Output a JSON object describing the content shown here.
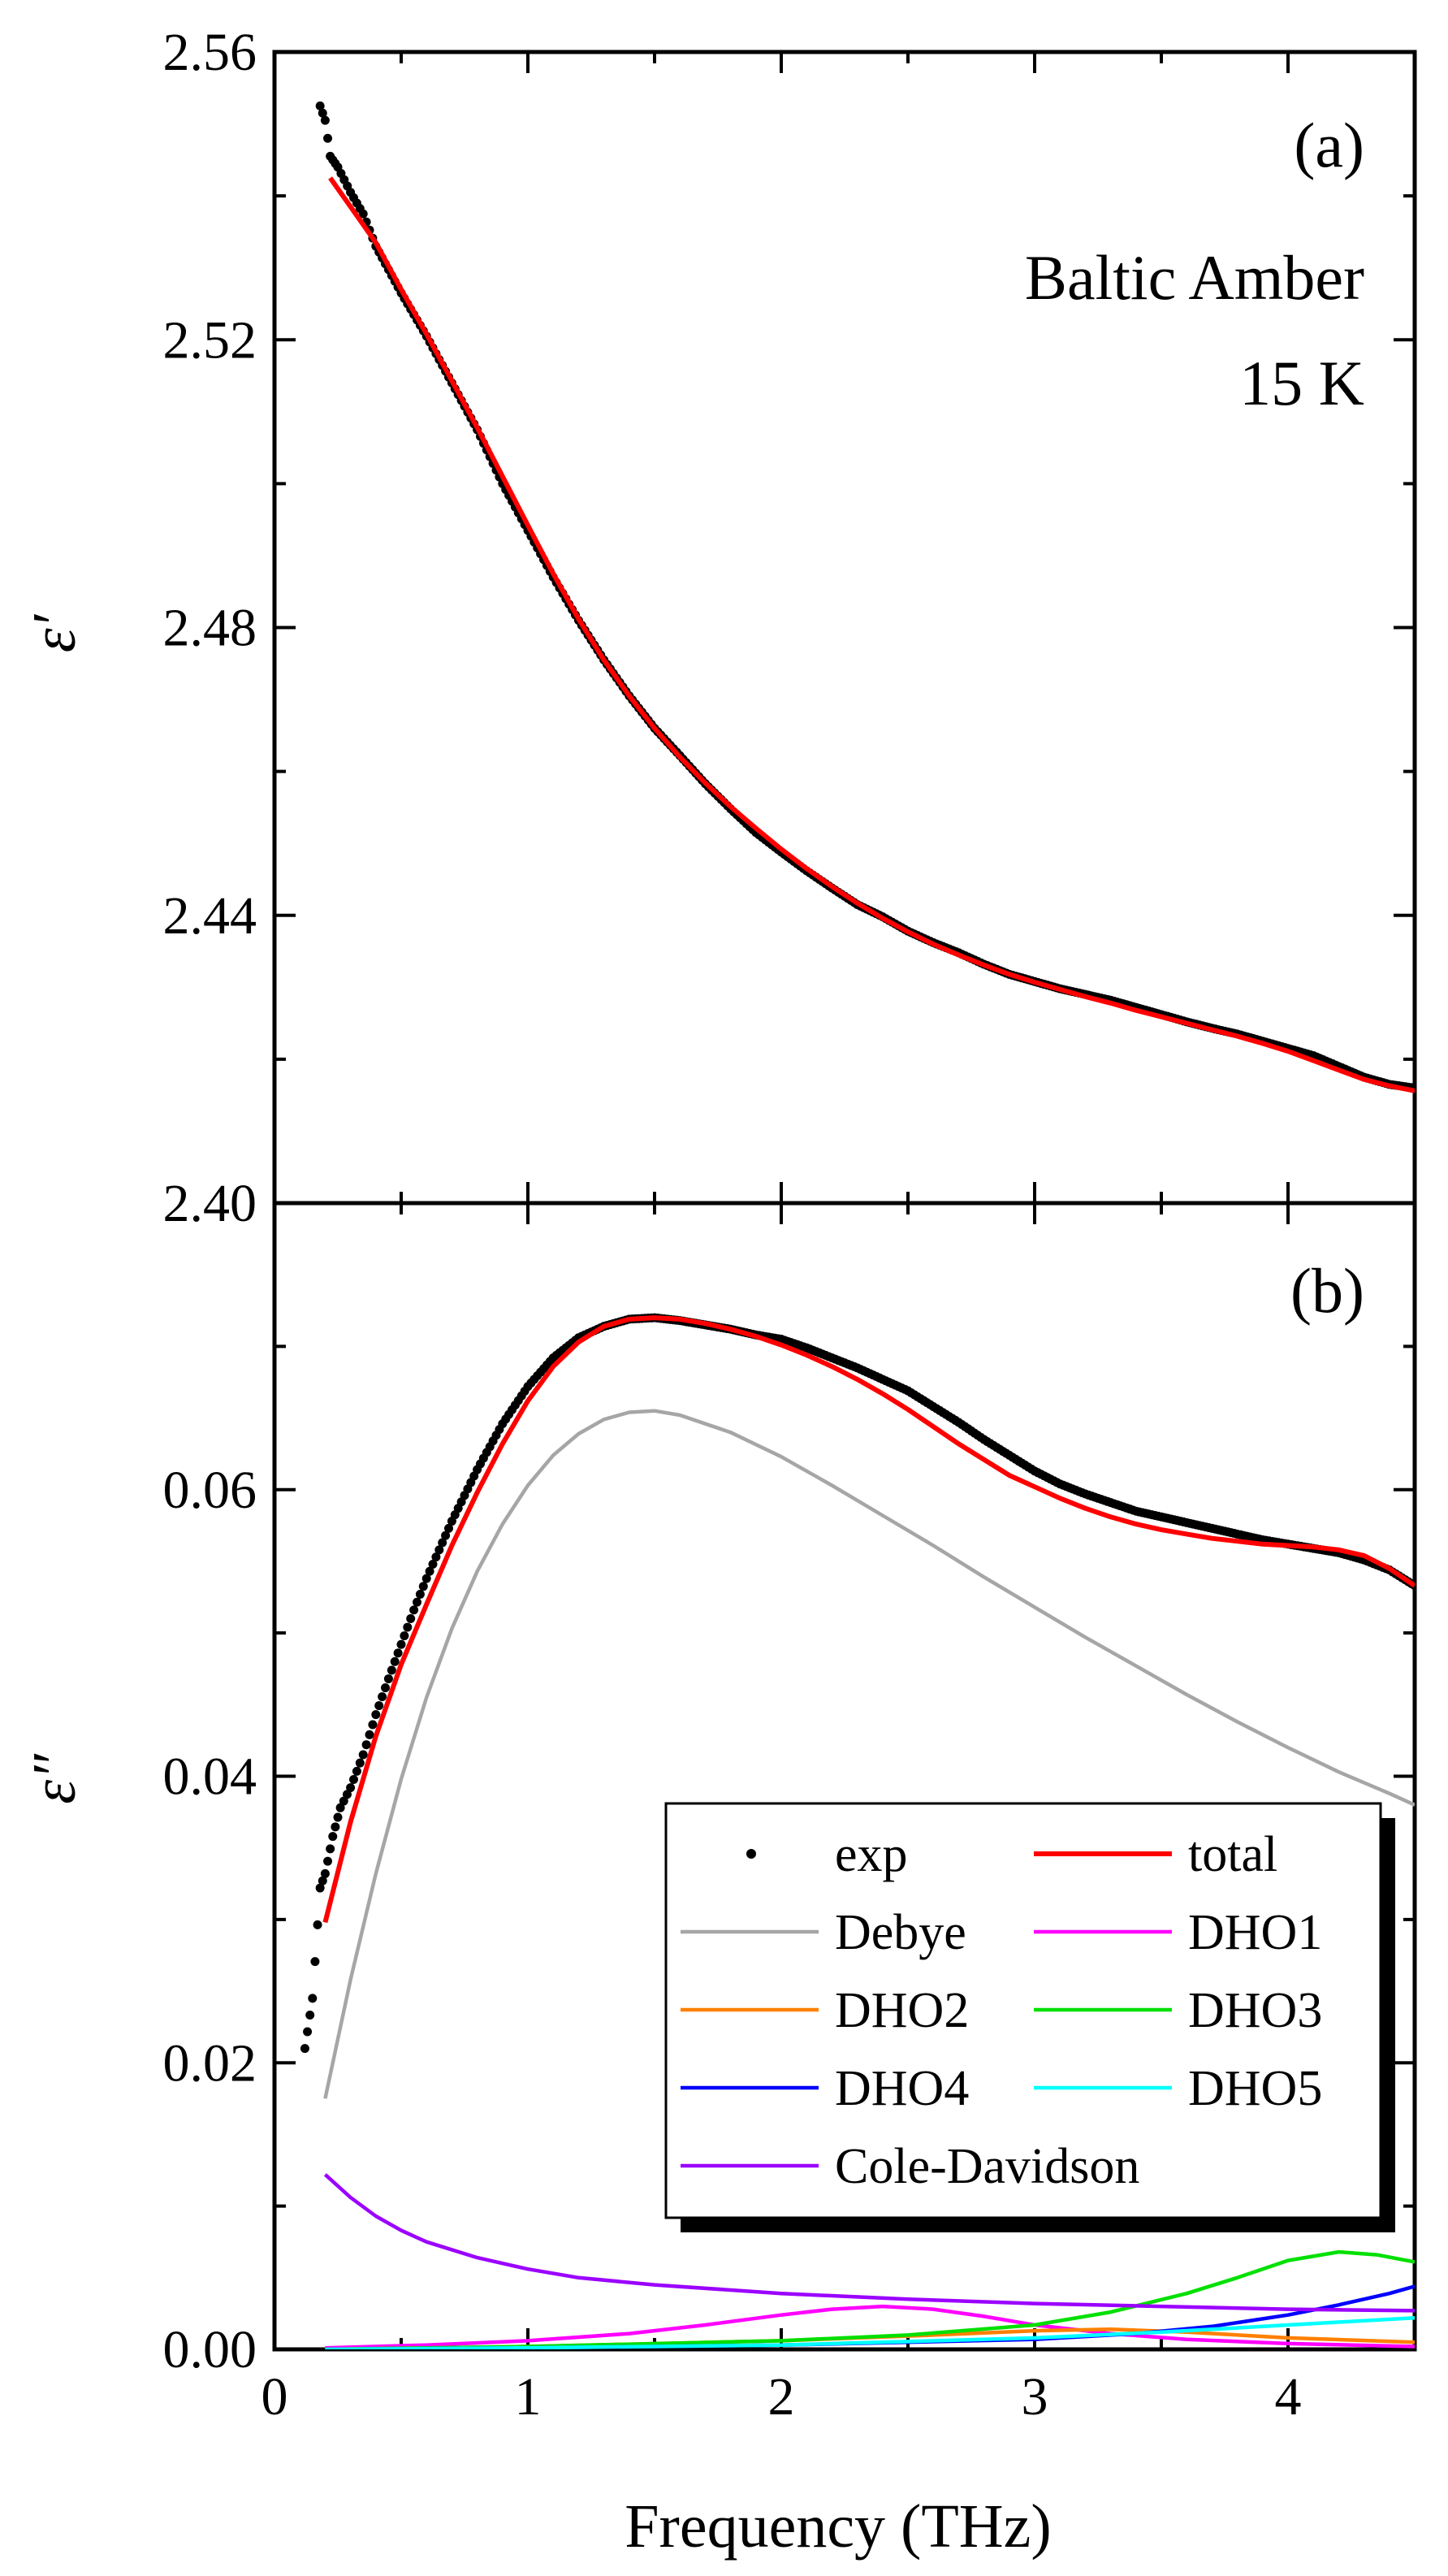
{
  "chart_data": [
    {
      "panel": "a",
      "type": "line",
      "label": "(a)",
      "title_line1": "Baltic Amber",
      "title_line2": "15 K",
      "ylabel": "ε′",
      "xlabel": "",
      "xlim": [
        0,
        4.5
      ],
      "ylim": [
        2.4,
        2.56
      ],
      "yticks": [
        2.4,
        2.44,
        2.48,
        2.52,
        2.56
      ],
      "ytick_labels": [
        "2.40",
        "2.44",
        "2.48",
        "2.52",
        "2.56"
      ],
      "series": [
        {
          "name": "exp",
          "style": "points",
          "color": "#000000",
          "x": [
            0.18,
            0.2,
            0.22,
            0.25,
            0.3,
            0.35,
            0.4,
            0.5,
            0.6,
            0.7,
            0.8,
            0.9,
            1.0,
            1.1,
            1.2,
            1.3,
            1.4,
            1.5,
            1.6,
            1.7,
            1.8,
            1.9,
            2.0,
            2.1,
            2.2,
            2.3,
            2.4,
            2.5,
            2.6,
            2.7,
            2.8,
            2.9,
            3.0,
            3.1,
            3.2,
            3.3,
            3.4,
            3.5,
            3.6,
            3.7,
            3.8,
            3.9,
            4.0,
            4.1,
            4.2,
            4.3,
            4.4,
            4.5
          ],
          "y": [
            2.5525,
            2.5505,
            2.5455,
            2.544,
            2.5405,
            2.5375,
            2.533,
            2.5265,
            2.5205,
            2.514,
            2.5075,
            2.5,
            2.4935,
            2.487,
            2.481,
            2.4755,
            2.4705,
            2.466,
            2.4622,
            2.4583,
            2.4548,
            2.4515,
            2.4488,
            2.4462,
            2.4438,
            2.4415,
            2.4398,
            2.4378,
            2.4362,
            2.4348,
            2.4332,
            2.4318,
            2.4308,
            2.4298,
            2.429,
            2.4282,
            2.4272,
            2.4262,
            2.4252,
            2.4243,
            2.4235,
            2.4225,
            2.4215,
            2.4205,
            2.419,
            2.4175,
            2.4165,
            2.416
          ]
        },
        {
          "name": "total",
          "style": "line",
          "color": "#ff0000",
          "x": [
            0.22,
            0.3,
            0.4,
            0.5,
            0.6,
            0.7,
            0.8,
            0.9,
            1.0,
            1.1,
            1.2,
            1.3,
            1.4,
            1.5,
            1.6,
            1.7,
            1.8,
            1.9,
            2.0,
            2.1,
            2.2,
            2.3,
            2.4,
            2.5,
            2.6,
            2.7,
            2.8,
            2.9,
            3.0,
            3.1,
            3.2,
            3.3,
            3.4,
            3.5,
            3.6,
            3.7,
            3.8,
            3.9,
            4.0,
            4.1,
            4.2,
            4.3,
            4.4,
            4.5
          ],
          "y": [
            2.5425,
            2.5385,
            2.5335,
            2.527,
            2.5208,
            2.5143,
            2.5078,
            2.501,
            2.4942,
            2.4875,
            2.4812,
            2.4755,
            2.4705,
            2.466,
            2.462,
            2.4584,
            2.4551,
            2.4521,
            2.4492,
            2.4465,
            2.444,
            2.4417,
            2.4396,
            2.4377,
            2.436,
            2.4345,
            2.4331,
            2.4318,
            2.4307,
            2.4297,
            2.4287,
            2.4278,
            2.4268,
            2.4259,
            2.425,
            2.4241,
            2.4232,
            2.4222,
            2.4211,
            2.4198,
            2.4185,
            2.4172,
            2.4163,
            2.4156
          ]
        }
      ]
    },
    {
      "panel": "b",
      "type": "line",
      "label": "(b)",
      "ylabel": "ε″",
      "xlabel": "Frequency (THz)",
      "xlim": [
        0,
        4.5
      ],
      "ylim": [
        0.0,
        0.08
      ],
      "xticks": [
        0,
        1,
        2,
        3,
        4
      ],
      "xtick_labels": [
        "0",
        "1",
        "2",
        "3",
        "4"
      ],
      "yticks": [
        0.0,
        0.02,
        0.04,
        0.06
      ],
      "ytick_labels": [
        "0.00",
        "0.02",
        "0.04",
        "0.06"
      ],
      "legend_position": "bottom-right",
      "series": [
        {
          "name": "exp",
          "style": "points",
          "color": "#000000",
          "x": [
            0.12,
            0.15,
            0.18,
            0.2,
            0.23,
            0.26,
            0.3,
            0.35,
            0.4,
            0.45,
            0.5,
            0.55,
            0.6,
            0.65,
            0.7,
            0.8,
            0.9,
            1.0,
            1.1,
            1.2,
            1.3,
            1.4,
            1.5,
            1.6,
            1.7,
            1.8,
            1.9,
            2.0,
            2.1,
            2.2,
            2.3,
            2.4,
            2.5,
            2.6,
            2.7,
            2.8,
            2.9,
            3.0,
            3.1,
            3.2,
            3.3,
            3.4,
            3.5,
            3.6,
            3.7,
            3.8,
            3.9,
            4.0,
            4.1,
            4.2,
            4.3,
            4.4,
            4.5
          ],
          "y": [
            0.021,
            0.0245,
            0.0322,
            0.0332,
            0.0358,
            0.0378,
            0.0392,
            0.0415,
            0.0443,
            0.0468,
            0.0492,
            0.0516,
            0.0538,
            0.0558,
            0.0578,
            0.0614,
            0.0646,
            0.0672,
            0.0692,
            0.0706,
            0.0714,
            0.0719,
            0.072,
            0.0718,
            0.0715,
            0.0712,
            0.0708,
            0.0705,
            0.0699,
            0.0692,
            0.0685,
            0.0677,
            0.0669,
            0.0658,
            0.0647,
            0.0635,
            0.0624,
            0.0613,
            0.0604,
            0.0597,
            0.0591,
            0.0585,
            0.0581,
            0.0577,
            0.0573,
            0.0569,
            0.0565,
            0.0562,
            0.0559,
            0.0556,
            0.0551,
            0.0544,
            0.0533
          ]
        },
        {
          "name": "total",
          "style": "line",
          "color": "#ff0000",
          "x": [
            0.2,
            0.3,
            0.4,
            0.5,
            0.6,
            0.7,
            0.8,
            0.9,
            1.0,
            1.1,
            1.2,
            1.3,
            1.4,
            1.5,
            1.6,
            1.7,
            1.8,
            1.9,
            2.0,
            2.1,
            2.2,
            2.3,
            2.4,
            2.5,
            2.6,
            2.7,
            2.8,
            2.9,
            3.0,
            3.1,
            3.2,
            3.3,
            3.4,
            3.5,
            3.6,
            3.7,
            3.8,
            3.9,
            4.0,
            4.1,
            4.2,
            4.3,
            4.4,
            4.5
          ],
          "y": [
            0.0298,
            0.0368,
            0.0428,
            0.0478,
            0.052,
            0.0561,
            0.0598,
            0.0632,
            0.0662,
            0.0686,
            0.0703,
            0.0714,
            0.0719,
            0.072,
            0.0719,
            0.0716,
            0.0712,
            0.0707,
            0.0701,
            0.0694,
            0.0686,
            0.0677,
            0.0667,
            0.0656,
            0.0644,
            0.0632,
            0.0621,
            0.061,
            0.0602,
            0.0594,
            0.0587,
            0.0581,
            0.0576,
            0.0572,
            0.0569,
            0.0566,
            0.0564,
            0.0562,
            0.0561,
            0.056,
            0.0558,
            0.0554,
            0.0545,
            0.0533
          ]
        },
        {
          "name": "Debye",
          "style": "line",
          "color": "#a6a6a6",
          "x": [
            0.2,
            0.3,
            0.4,
            0.5,
            0.6,
            0.7,
            0.8,
            0.9,
            1.0,
            1.1,
            1.2,
            1.3,
            1.4,
            1.5,
            1.6,
            1.8,
            2.0,
            2.2,
            2.4,
            2.6,
            2.8,
            3.0,
            3.2,
            3.4,
            3.6,
            3.8,
            4.0,
            4.2,
            4.4,
            4.5
          ],
          "y": [
            0.0175,
            0.0258,
            0.0332,
            0.0398,
            0.0455,
            0.0503,
            0.0543,
            0.0576,
            0.0603,
            0.0624,
            0.0639,
            0.0649,
            0.0654,
            0.0655,
            0.0652,
            0.064,
            0.0623,
            0.0603,
            0.0582,
            0.0561,
            0.0539,
            0.0518,
            0.0497,
            0.0477,
            0.0457,
            0.0438,
            0.042,
            0.0403,
            0.0388,
            0.038
          ]
        },
        {
          "name": "DHO1",
          "style": "line",
          "color": "#ff00ff",
          "x": [
            0.2,
            0.6,
            1.0,
            1.4,
            1.7,
            2.0,
            2.2,
            2.4,
            2.6,
            2.8,
            3.0,
            3.3,
            3.6,
            4.0,
            4.5
          ],
          "y": [
            0.0001,
            0.0003,
            0.0006,
            0.0011,
            0.0017,
            0.0024,
            0.0028,
            0.003,
            0.0028,
            0.0023,
            0.0017,
            0.0011,
            0.0007,
            0.0004,
            0.0002
          ]
        },
        {
          "name": "DHO2",
          "style": "line",
          "color": "#ff8000",
          "x": [
            0.2,
            1.0,
            2.0,
            2.6,
            3.0,
            3.3,
            3.6,
            4.0,
            4.5
          ],
          "y": [
            0.0,
            0.0002,
            0.0006,
            0.001,
            0.0013,
            0.0014,
            0.0012,
            0.0008,
            0.0005
          ]
        },
        {
          "name": "DHO3",
          "style": "line",
          "color": "#00e000",
          "x": [
            0.2,
            1.0,
            2.0,
            2.5,
            3.0,
            3.3,
            3.6,
            3.8,
            4.0,
            4.2,
            4.35,
            4.5
          ],
          "y": [
            0.0,
            0.0002,
            0.0006,
            0.001,
            0.0017,
            0.0026,
            0.0039,
            0.005,
            0.0062,
            0.0068,
            0.0066,
            0.0061
          ]
        },
        {
          "name": "DHO4",
          "style": "line",
          "color": "#0000ff",
          "x": [
            0.2,
            1.0,
            2.0,
            3.0,
            3.4,
            3.7,
            4.0,
            4.2,
            4.4,
            4.5
          ],
          "y": [
            0.0,
            0.0001,
            0.0003,
            0.0007,
            0.0011,
            0.0016,
            0.0024,
            0.0031,
            0.0039,
            0.0044
          ]
        },
        {
          "name": "DHO5",
          "style": "line",
          "color": "#00ffff",
          "x": [
            0.2,
            1.0,
            2.0,
            3.0,
            3.5,
            4.0,
            4.3,
            4.5
          ],
          "y": [
            0.0,
            0.0001,
            0.0003,
            0.0008,
            0.0012,
            0.0017,
            0.002,
            0.0022
          ]
        },
        {
          "name": "Cole-Davidson",
          "style": "line",
          "color": "#9b00ff",
          "x": [
            0.2,
            0.3,
            0.4,
            0.5,
            0.6,
            0.8,
            1.0,
            1.2,
            1.5,
            2.0,
            2.5,
            3.0,
            3.5,
            4.0,
            4.5
          ],
          "y": [
            0.0122,
            0.0106,
            0.0093,
            0.0083,
            0.0075,
            0.0064,
            0.0056,
            0.005,
            0.0045,
            0.0039,
            0.0035,
            0.0032,
            0.003,
            0.0028,
            0.0027
          ]
        }
      ]
    }
  ]
}
